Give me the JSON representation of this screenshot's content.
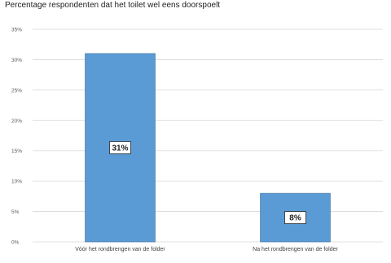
{
  "chart_data": {
    "type": "bar",
    "title": "Percentage respondenten dat het toilet wel eens doorspoelt",
    "categories": [
      "Vóór het rondbrengen van de folder",
      "Na het rondbrengen van de folder"
    ],
    "series": [
      {
        "values": [
          31,
          8
        ],
        "color": "#5b9bd5"
      }
    ],
    "data_labels": [
      "31%",
      "8%"
    ],
    "ylim": [
      0,
      35
    ],
    "yticks": [
      0,
      5,
      10,
      15,
      20,
      25,
      30,
      35
    ],
    "ytick_labels": [
      "0%",
      "5%",
      "10%",
      "15%",
      "20%",
      "25%",
      "30%",
      "35%"
    ],
    "xlabel": "",
    "ylabel": "",
    "grid": true,
    "gridline_color": "#d9d9d9",
    "bar_border_color": "#41719c",
    "legend": "none"
  }
}
